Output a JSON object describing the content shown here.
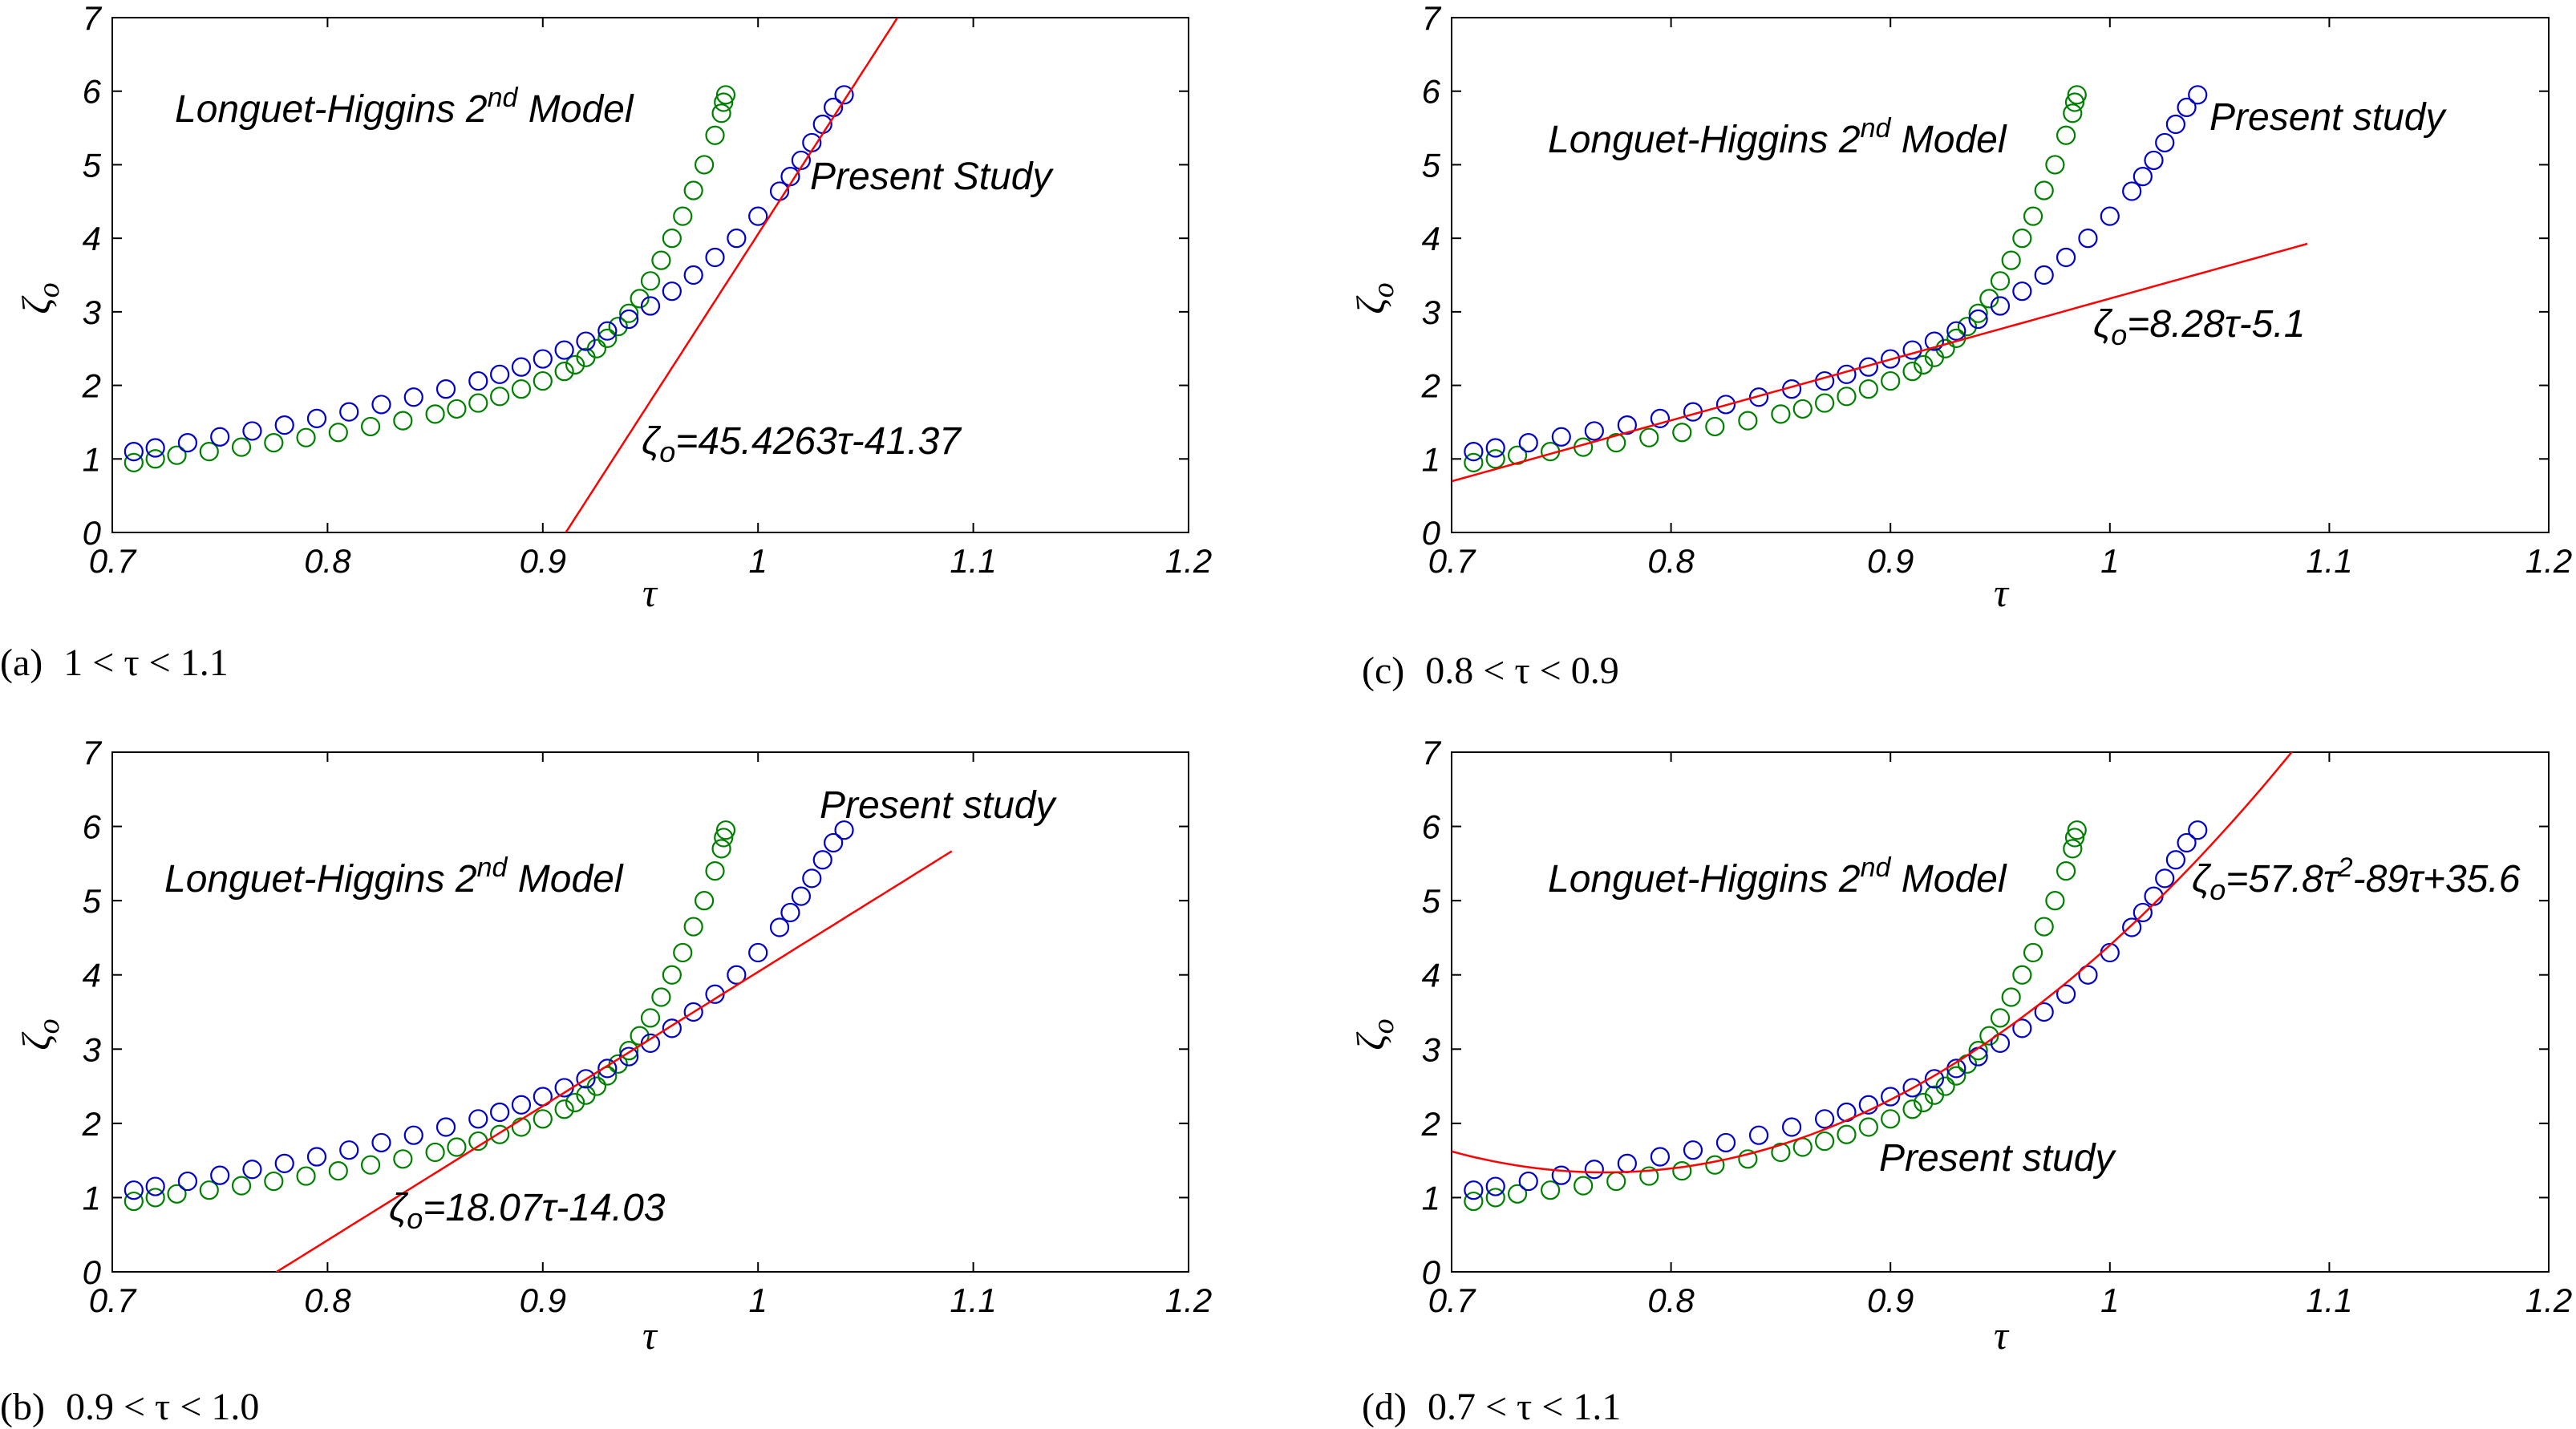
{
  "colors": {
    "present_study": "#0000c8",
    "longuet_higgins": "#008000",
    "fit": "#ff0000"
  },
  "chart_data": [
    {
      "id": "a",
      "type": "scatter",
      "caption": {
        "letter": "(a)",
        "range": "1 < τ < 1.1"
      },
      "xlabel": "τ",
      "ylabel": "ζ",
      "xlim": [
        0.7,
        1.2
      ],
      "ylim": [
        0,
        7
      ],
      "xticks": [
        "0.7",
        "0.8",
        "0.9",
        "1",
        "1.1",
        "1.2"
      ],
      "yticks": [
        "0",
        "1",
        "2",
        "3",
        "4",
        "5",
        "6",
        "7"
      ],
      "grid": false,
      "annotations": {
        "model": {
          "text": "Longuet-Higgins 2",
          "sup": "nd",
          "tail": " Model"
        },
        "study": {
          "text": "Present Study"
        },
        "equation": {
          "main": "ζ",
          "sub": "o",
          "rest": "=45.4263τ-41.37"
        }
      },
      "fit": {
        "kind": "linear",
        "coef": [
          45.4263,
          -41.37
        ],
        "x_from": 0.91,
        "x_to": 1.066
      },
      "series": [
        {
          "kind": "green",
          "x": [
            0.71,
            0.72,
            0.73,
            0.745,
            0.76,
            0.775,
            0.79,
            0.805,
            0.82,
            0.835,
            0.85,
            0.86,
            0.87,
            0.88,
            0.89,
            0.9,
            0.91,
            0.915,
            0.92,
            0.925,
            0.93,
            0.935,
            0.94,
            0.945,
            0.95,
            0.955,
            0.96,
            0.965,
            0.97,
            0.975,
            0.98,
            0.983,
            0.984,
            0.985
          ],
          "y": [
            0.95,
            1.0,
            1.05,
            1.1,
            1.16,
            1.22,
            1.29,
            1.36,
            1.44,
            1.52,
            1.61,
            1.68,
            1.76,
            1.85,
            1.95,
            2.06,
            2.19,
            2.28,
            2.38,
            2.5,
            2.64,
            2.8,
            2.98,
            3.18,
            3.42,
            3.7,
            4.0,
            4.3,
            4.65,
            5.0,
            5.4,
            5.7,
            5.85,
            5.95
          ]
        },
        {
          "kind": "blue",
          "x": [
            0.71,
            0.72,
            0.735,
            0.75,
            0.765,
            0.78,
            0.795,
            0.81,
            0.825,
            0.84,
            0.855,
            0.87,
            0.88,
            0.89,
            0.9,
            0.91,
            0.92,
            0.93,
            0.94,
            0.95,
            0.96,
            0.97,
            0.98,
            0.99,
            1.0,
            1.01,
            1.015,
            1.02,
            1.025,
            1.03,
            1.035,
            1.04
          ],
          "y": [
            1.1,
            1.15,
            1.22,
            1.3,
            1.38,
            1.46,
            1.55,
            1.64,
            1.74,
            1.84,
            1.95,
            2.06,
            2.15,
            2.25,
            2.36,
            2.48,
            2.6,
            2.74,
            2.9,
            3.08,
            3.28,
            3.5,
            3.74,
            4.0,
            4.3,
            4.64,
            4.84,
            5.06,
            5.3,
            5.55,
            5.78,
            5.95
          ]
        }
      ]
    },
    {
      "id": "c",
      "type": "scatter",
      "caption": {
        "letter": "(c)",
        "range": "0.8 < τ < 0.9"
      },
      "xlabel": "τ",
      "ylabel": "ζ",
      "xlim": [
        0.7,
        1.2
      ],
      "ylim": [
        0,
        7
      ],
      "xticks": [
        "0.7",
        "0.8",
        "0.9",
        "1",
        "1.1",
        "1.2"
      ],
      "yticks": [
        "0",
        "1",
        "2",
        "3",
        "4",
        "5",
        "6",
        "7"
      ],
      "grid": false,
      "annotations": {
        "model": {
          "text": "Longuet-Higgins 2",
          "sup": "nd",
          "tail": " Model"
        },
        "study": {
          "text": "Present study"
        },
        "equation": {
          "main": "ζ",
          "sub": "o",
          "rest": "=8.28τ-5.1"
        }
      },
      "fit": {
        "kind": "linear",
        "coef": [
          8.28,
          -5.1
        ],
        "x_from": 0.7,
        "x_to": 1.09
      },
      "series": [
        {
          "kind": "green",
          "x": [
            0.71,
            0.72,
            0.73,
            0.745,
            0.76,
            0.775,
            0.79,
            0.805,
            0.82,
            0.835,
            0.85,
            0.86,
            0.87,
            0.88,
            0.89,
            0.9,
            0.91,
            0.915,
            0.92,
            0.925,
            0.93,
            0.935,
            0.94,
            0.945,
            0.95,
            0.955,
            0.96,
            0.965,
            0.97,
            0.975,
            0.98,
            0.983,
            0.984,
            0.985
          ],
          "y": [
            0.95,
            1.0,
            1.05,
            1.1,
            1.16,
            1.22,
            1.29,
            1.36,
            1.44,
            1.52,
            1.61,
            1.68,
            1.76,
            1.85,
            1.95,
            2.06,
            2.19,
            2.28,
            2.38,
            2.5,
            2.64,
            2.8,
            2.98,
            3.18,
            3.42,
            3.7,
            4.0,
            4.3,
            4.65,
            5.0,
            5.4,
            5.7,
            5.85,
            5.95
          ]
        },
        {
          "kind": "blue",
          "x": [
            0.71,
            0.72,
            0.735,
            0.75,
            0.765,
            0.78,
            0.795,
            0.81,
            0.825,
            0.84,
            0.855,
            0.87,
            0.88,
            0.89,
            0.9,
            0.91,
            0.92,
            0.93,
            0.94,
            0.95,
            0.96,
            0.97,
            0.98,
            0.99,
            1.0,
            1.01,
            1.015,
            1.02,
            1.025,
            1.03,
            1.035,
            1.04
          ],
          "y": [
            1.1,
            1.15,
            1.22,
            1.3,
            1.38,
            1.46,
            1.55,
            1.64,
            1.74,
            1.84,
            1.95,
            2.06,
            2.15,
            2.25,
            2.36,
            2.48,
            2.6,
            2.74,
            2.9,
            3.08,
            3.28,
            3.5,
            3.74,
            4.0,
            4.3,
            4.64,
            4.84,
            5.06,
            5.3,
            5.55,
            5.78,
            5.95
          ]
        }
      ]
    },
    {
      "id": "b",
      "type": "scatter",
      "caption": {
        "letter": "(b)",
        "range": "0.9 < τ < 1.0"
      },
      "xlabel": "τ",
      "ylabel": "ζ",
      "xlim": [
        0.7,
        1.2
      ],
      "ylim": [
        0,
        7
      ],
      "xticks": [
        "0.7",
        "0.8",
        "0.9",
        "1",
        "1.1",
        "1.2"
      ],
      "yticks": [
        "0",
        "1",
        "2",
        "3",
        "4",
        "5",
        "6",
        "7"
      ],
      "grid": false,
      "annotations": {
        "model": {
          "text": "Longuet-Higgins 2",
          "sup": "nd",
          "tail": " Model"
        },
        "study": {
          "text": "Present study"
        },
        "equation": {
          "main": "ζ",
          "sub": "o",
          "rest": "=18.07τ-14.03"
        }
      },
      "fit": {
        "kind": "linear",
        "coef": [
          18.07,
          -14.03
        ],
        "x_from": 0.776,
        "x_to": 1.09
      },
      "series": [
        {
          "kind": "green",
          "x": [
            0.71,
            0.72,
            0.73,
            0.745,
            0.76,
            0.775,
            0.79,
            0.805,
            0.82,
            0.835,
            0.85,
            0.86,
            0.87,
            0.88,
            0.89,
            0.9,
            0.91,
            0.915,
            0.92,
            0.925,
            0.93,
            0.935,
            0.94,
            0.945,
            0.95,
            0.955,
            0.96,
            0.965,
            0.97,
            0.975,
            0.98,
            0.983,
            0.984,
            0.985
          ],
          "y": [
            0.95,
            1.0,
            1.05,
            1.1,
            1.16,
            1.22,
            1.29,
            1.36,
            1.44,
            1.52,
            1.61,
            1.68,
            1.76,
            1.85,
            1.95,
            2.06,
            2.19,
            2.28,
            2.38,
            2.5,
            2.64,
            2.8,
            2.98,
            3.18,
            3.42,
            3.7,
            4.0,
            4.3,
            4.65,
            5.0,
            5.4,
            5.7,
            5.85,
            5.95
          ]
        },
        {
          "kind": "blue",
          "x": [
            0.71,
            0.72,
            0.735,
            0.75,
            0.765,
            0.78,
            0.795,
            0.81,
            0.825,
            0.84,
            0.855,
            0.87,
            0.88,
            0.89,
            0.9,
            0.91,
            0.92,
            0.93,
            0.94,
            0.95,
            0.96,
            0.97,
            0.98,
            0.99,
            1.0,
            1.01,
            1.015,
            1.02,
            1.025,
            1.03,
            1.035,
            1.04
          ],
          "y": [
            1.1,
            1.15,
            1.22,
            1.3,
            1.38,
            1.46,
            1.55,
            1.64,
            1.74,
            1.84,
            1.95,
            2.06,
            2.15,
            2.25,
            2.36,
            2.48,
            2.6,
            2.74,
            2.9,
            3.08,
            3.28,
            3.5,
            3.74,
            4.0,
            4.3,
            4.64,
            4.84,
            5.06,
            5.3,
            5.55,
            5.78,
            5.95
          ]
        }
      ]
    },
    {
      "id": "d",
      "type": "scatter",
      "caption": {
        "letter": "(d)",
        "range": "0.7 < τ < 1.1"
      },
      "xlabel": "τ",
      "ylabel": "ζ",
      "xlim": [
        0.7,
        1.2
      ],
      "ylim": [
        0,
        7
      ],
      "xticks": [
        "0.7",
        "0.8",
        "0.9",
        "1",
        "1.1",
        "1.2"
      ],
      "yticks": [
        "0",
        "1",
        "2",
        "3",
        "4",
        "5",
        "6",
        "7"
      ],
      "grid": false,
      "annotations": {
        "model": {
          "text": "Longuet-Higgins 2",
          "sup": "nd",
          "tail": " Model"
        },
        "study": {
          "text": "Present study"
        },
        "equation": {
          "main": "ζ",
          "sub": "o",
          "mid": "=57.8τ",
          "sup": "2",
          "rest": "-89τ+35.6"
        }
      },
      "fit": {
        "kind": "quadratic",
        "coef": [
          57.8,
          -89,
          35.6
        ],
        "x_from": 0.7,
        "x_to": 1.085
      },
      "series": [
        {
          "kind": "green",
          "x": [
            0.71,
            0.72,
            0.73,
            0.745,
            0.76,
            0.775,
            0.79,
            0.805,
            0.82,
            0.835,
            0.85,
            0.86,
            0.87,
            0.88,
            0.89,
            0.9,
            0.91,
            0.915,
            0.92,
            0.925,
            0.93,
            0.935,
            0.94,
            0.945,
            0.95,
            0.955,
            0.96,
            0.965,
            0.97,
            0.975,
            0.98,
            0.983,
            0.984,
            0.985
          ],
          "y": [
            0.95,
            1.0,
            1.05,
            1.1,
            1.16,
            1.22,
            1.29,
            1.36,
            1.44,
            1.52,
            1.61,
            1.68,
            1.76,
            1.85,
            1.95,
            2.06,
            2.19,
            2.28,
            2.38,
            2.5,
            2.64,
            2.8,
            2.98,
            3.18,
            3.42,
            3.7,
            4.0,
            4.3,
            4.65,
            5.0,
            5.4,
            5.7,
            5.85,
            5.95
          ]
        },
        {
          "kind": "blue",
          "x": [
            0.71,
            0.72,
            0.735,
            0.75,
            0.765,
            0.78,
            0.795,
            0.81,
            0.825,
            0.84,
            0.855,
            0.87,
            0.88,
            0.89,
            0.9,
            0.91,
            0.92,
            0.93,
            0.94,
            0.95,
            0.96,
            0.97,
            0.98,
            0.99,
            1.0,
            1.01,
            1.015,
            1.02,
            1.025,
            1.03,
            1.035,
            1.04
          ],
          "y": [
            1.1,
            1.15,
            1.22,
            1.3,
            1.38,
            1.46,
            1.55,
            1.64,
            1.74,
            1.84,
            1.95,
            2.06,
            2.15,
            2.25,
            2.36,
            2.48,
            2.6,
            2.74,
            2.9,
            3.08,
            3.28,
            3.5,
            3.74,
            4.0,
            4.3,
            4.64,
            4.84,
            5.06,
            5.3,
            5.55,
            5.78,
            5.95
          ]
        }
      ]
    }
  ]
}
